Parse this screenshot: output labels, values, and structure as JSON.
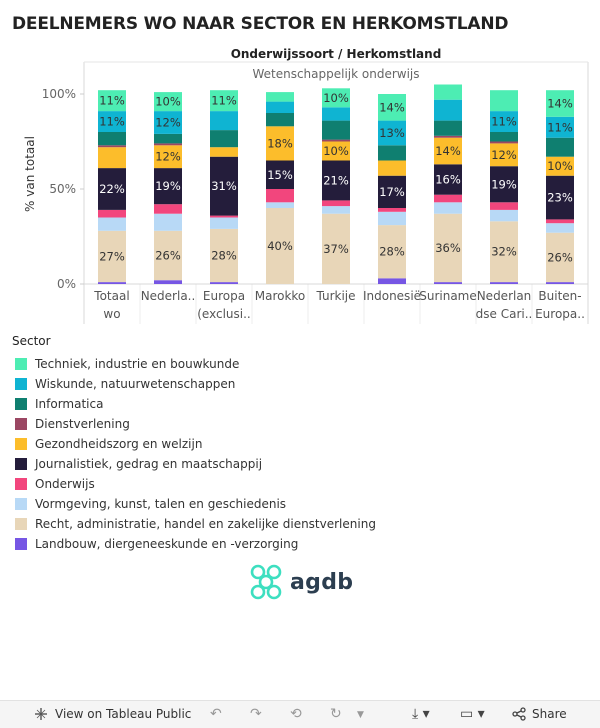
{
  "page": {
    "title": "DEELNEMERS WO NAAR SECTOR EN HERKOMSTLAND",
    "column_header": "Onderwijssoort  /  Herkomstland",
    "column_subheader": "Wetenschappelijk onderwijs",
    "legend_title": "Sector",
    "logo_text": "agdb"
  },
  "footer": {
    "view_label": "View on Tableau Public",
    "share_label": "Share"
  },
  "colors": {
    "sectors": [
      "#4dedb3",
      "#0fb4d2",
      "#0f7f70",
      "#9b4763",
      "#fcbd2b",
      "#241d3b",
      "#f2467d",
      "#b8d9f6",
      "#e8d6b8",
      "#7656e4"
    ]
  },
  "chart_data": {
    "type": "bar",
    "stacked": true,
    "ylabel": "% van totaal",
    "ylim": [
      0,
      100
    ],
    "yticks": [
      "0%",
      "50%",
      "100%"
    ],
    "categories": [
      "Totaal\nwo",
      "Nederla..",
      "Europa\n(exclusi..",
      "Marokko",
      "Turkije",
      "Indonesië",
      "Suriname",
      "Nederlan\ndse Cari..",
      "Buiten-\nEuropa.."
    ],
    "series": [
      {
        "name": "Techniek, industrie en bouwkunde",
        "values": [
          11,
          10,
          11,
          5,
          10,
          14,
          8,
          11,
          14
        ]
      },
      {
        "name": "Wiskunde, natuurwetenschappen",
        "values": [
          11,
          12,
          10,
          6,
          7,
          13,
          11,
          11,
          11
        ]
      },
      {
        "name": "Informatica",
        "values": [
          7,
          5,
          9,
          7,
          10,
          8,
          8,
          5,
          10
        ]
      },
      {
        "name": "Dienstverlening",
        "values": [
          1,
          1,
          0,
          0,
          1,
          0,
          1,
          1,
          0
        ]
      },
      {
        "name": "Gezondheidszorg en welzijn",
        "values": [
          11,
          12,
          5,
          18,
          10,
          8,
          14,
          12,
          10
        ]
      },
      {
        "name": "Journalistiek, gedrag en maatschappij",
        "values": [
          22,
          19,
          31,
          15,
          21,
          17,
          16,
          19,
          23
        ]
      },
      {
        "name": "Onderwijs",
        "values": [
          4,
          5,
          1,
          7,
          3,
          2,
          4,
          4,
          2
        ]
      },
      {
        "name": "Vormgeving, kunst, talen en geschiedenis",
        "values": [
          7,
          9,
          6,
          3,
          4,
          7,
          6,
          6,
          5
        ]
      },
      {
        "name": "Recht, administratie, handel en zakelijke dienstverlening",
        "values": [
          27,
          26,
          28,
          40,
          37,
          28,
          36,
          32,
          26
        ]
      },
      {
        "name": "Landbouw, diergeneeskunde en -verzorging",
        "values": [
          1,
          2,
          1,
          0,
          0,
          3,
          1,
          1,
          1
        ]
      }
    ],
    "data_labels": [
      {
        "series": 0,
        "categories": [
          0,
          1,
          2,
          4,
          5,
          8
        ],
        "values": [
          "11%",
          "10%",
          "11%",
          "10%",
          "14%",
          "14%"
        ]
      },
      {
        "series": 1,
        "categories": [
          0,
          1,
          5,
          7,
          8
        ],
        "values": [
          "11%",
          "12%",
          "13%",
          "11%",
          "11%"
        ]
      },
      {
        "series": 4,
        "categories": [
          1,
          3,
          4,
          6,
          7,
          8
        ],
        "values": [
          "12%",
          "18%",
          "10%",
          "14%",
          "12%",
          "10%"
        ]
      },
      {
        "series": 5,
        "categories": [
          0,
          1,
          2,
          3,
          4,
          5,
          6,
          7,
          8
        ],
        "values": [
          "22%",
          "19%",
          "31%",
          "15%",
          "21%",
          "17%",
          "16%",
          "19%",
          "23%"
        ]
      },
      {
        "series": 8,
        "categories": [
          0,
          1,
          2,
          3,
          4,
          5,
          6,
          7,
          8
        ],
        "values": [
          "27%",
          "26%",
          "28%",
          "40%",
          "37%",
          "28%",
          "36%",
          "32%",
          "26%"
        ]
      }
    ]
  }
}
